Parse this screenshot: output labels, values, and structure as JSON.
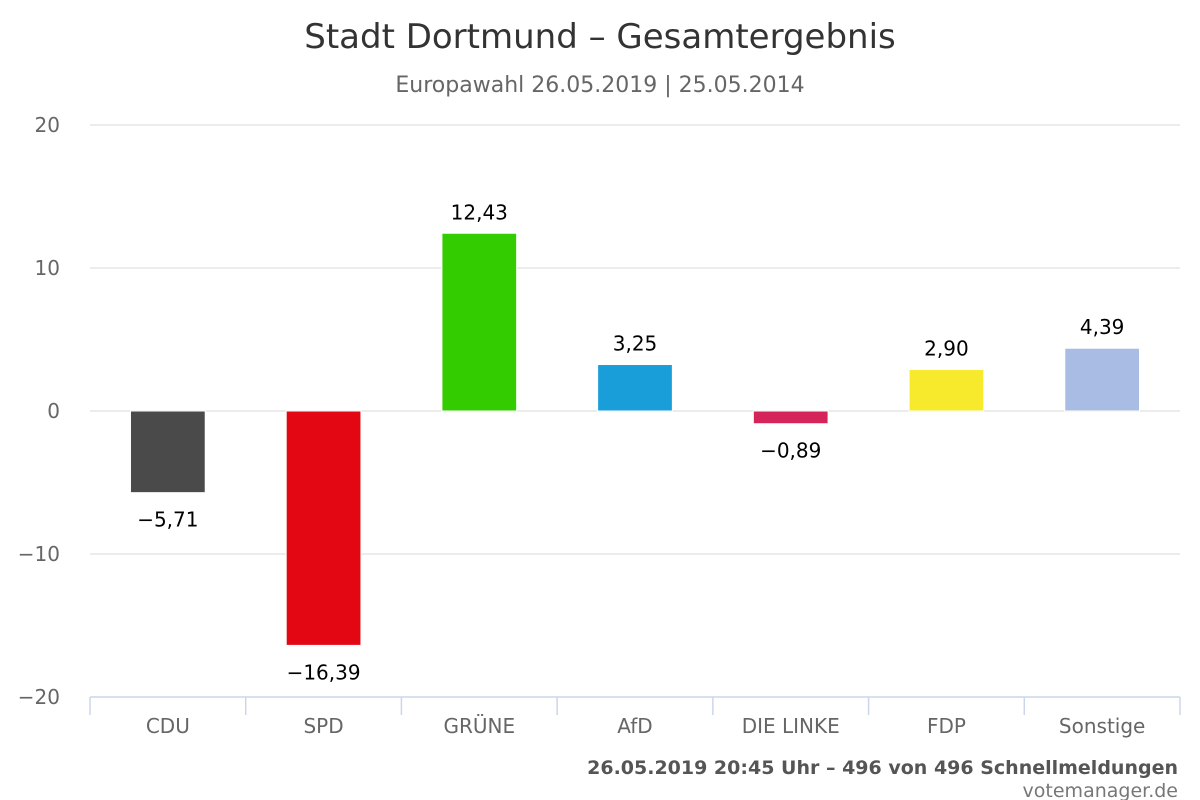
{
  "chart_data": {
    "type": "bar",
    "title": "Stadt Dortmund – Gesamtergebnis",
    "subtitle": "Europawahl 26.05.2019 | 25.05.2014",
    "categories": [
      "CDU",
      "SPD",
      "GRÜNE",
      "AfD",
      "DIE LINKE",
      "FDP",
      "Sonstige"
    ],
    "values": [
      -5.71,
      -16.39,
      12.43,
      3.25,
      -0.89,
      2.9,
      4.39
    ],
    "value_labels": [
      "−5,71",
      "−16,39",
      "12,43",
      "3,25",
      "−0,89",
      "2,90",
      "4,39"
    ],
    "colors": [
      "#4a4a4a",
      "#e30613",
      "#33cc00",
      "#1a9ed9",
      "#d4245a",
      "#f7ea2c",
      "#a9bce3"
    ],
    "ylim": [
      -20,
      20
    ],
    "yticks": [
      20,
      10,
      0,
      -10,
      -20
    ],
    "ytick_labels": [
      "20",
      "10",
      "0",
      "−10",
      "−20"
    ],
    "xlabel": "",
    "ylabel": "",
    "grid": true,
    "legend": "none"
  },
  "credits": {
    "status": "26.05.2019 20:45 Uhr – 496 von 496 Schnellmeldungen",
    "site": "votemanager.de"
  }
}
